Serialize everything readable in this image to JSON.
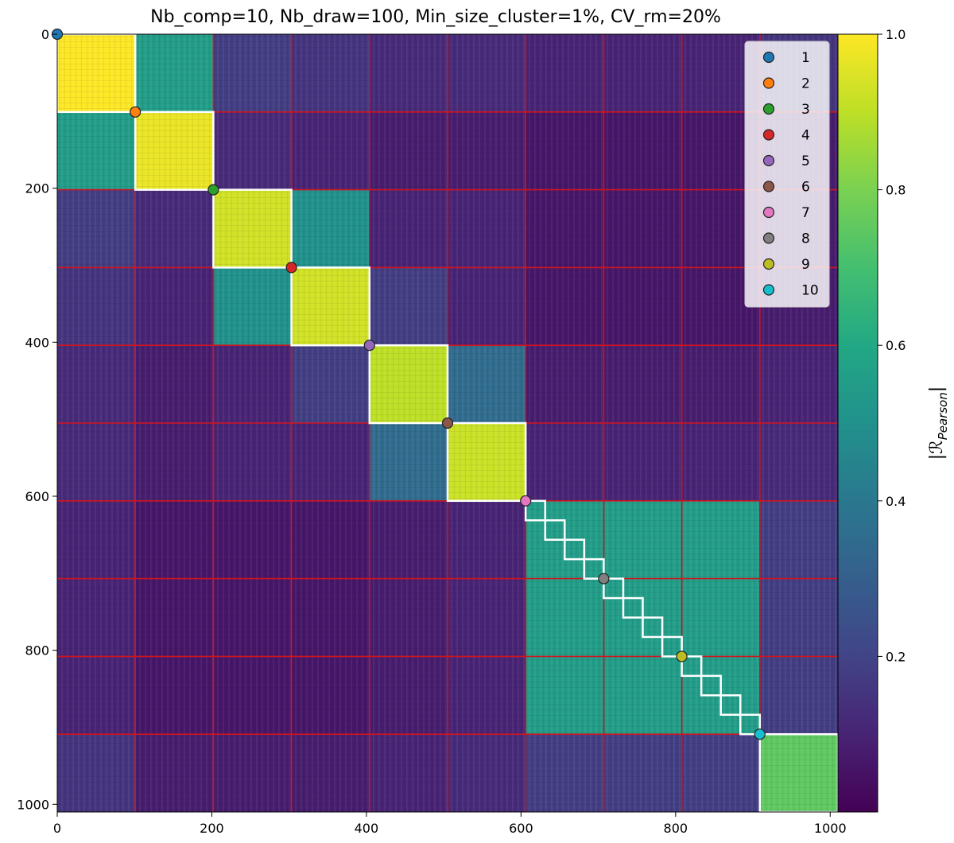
{
  "chart_data": {
    "type": "heatmap",
    "title": "Nb_comp=10, Nb_draw=100, Min_size_cluster=1%, CV_rm=20%",
    "colorbar_label": "|R_Pearson|",
    "xlim": [
      0,
      1010
    ],
    "ylim": [
      1010,
      0
    ],
    "x_ticks": [
      0,
      200,
      400,
      600,
      800,
      1000
    ],
    "y_ticks": [
      0,
      200,
      400,
      600,
      800,
      1000
    ],
    "colorbar_ticks": [
      0.2,
      0.4,
      0.6,
      0.8,
      1.0
    ],
    "colorbar_range": [
      0.0,
      1.0
    ],
    "colormap": "viridis",
    "grid": "red lines at component boundaries",
    "component_boundaries": [
      0,
      101,
      202,
      303,
      404,
      505,
      606,
      707,
      808,
      909,
      1010
    ],
    "block_mean_correlation": [
      [
        1.0,
        0.55,
        0.18,
        0.15,
        0.12,
        0.12,
        0.1,
        0.1,
        0.1,
        0.15
      ],
      [
        0.55,
        0.97,
        0.12,
        0.1,
        0.08,
        0.08,
        0.06,
        0.06,
        0.06,
        0.08
      ],
      [
        0.18,
        0.12,
        0.93,
        0.5,
        0.1,
        0.1,
        0.06,
        0.06,
        0.06,
        0.08
      ],
      [
        0.15,
        0.1,
        0.5,
        0.93,
        0.18,
        0.1,
        0.06,
        0.06,
        0.06,
        0.08
      ],
      [
        0.12,
        0.08,
        0.1,
        0.18,
        0.9,
        0.35,
        0.08,
        0.08,
        0.08,
        0.1
      ],
      [
        0.12,
        0.08,
        0.1,
        0.1,
        0.35,
        0.92,
        0.1,
        0.1,
        0.1,
        0.12
      ],
      [
        0.1,
        0.06,
        0.06,
        0.06,
        0.08,
        0.1,
        0.55,
        0.55,
        0.55,
        0.18
      ],
      [
        0.1,
        0.06,
        0.06,
        0.06,
        0.08,
        0.1,
        0.55,
        0.55,
        0.55,
        0.18
      ],
      [
        0.1,
        0.06,
        0.06,
        0.06,
        0.08,
        0.1,
        0.55,
        0.55,
        0.55,
        0.18
      ],
      [
        0.15,
        0.08,
        0.08,
        0.08,
        0.1,
        0.12,
        0.18,
        0.18,
        0.18,
        0.75
      ]
    ],
    "cluster_blocks": [
      {
        "start": 0,
        "end": 101
      },
      {
        "start": 101,
        "end": 202
      },
      {
        "start": 202,
        "end": 303
      },
      {
        "start": 303,
        "end": 404
      },
      {
        "start": 404,
        "end": 505
      },
      {
        "start": 505,
        "end": 606
      },
      {
        "start": 606,
        "end": 909,
        "note": "staircase of small clusters"
      },
      {
        "start": 909,
        "end": 1010
      }
    ],
    "series": [
      {
        "name": "1",
        "x": 0,
        "y": 0,
        "color": "#1f77b4"
      },
      {
        "name": "2",
        "x": 101,
        "y": 101,
        "color": "#ff7f0e"
      },
      {
        "name": "3",
        "x": 202,
        "y": 202,
        "color": "#2ca02c"
      },
      {
        "name": "4",
        "x": 303,
        "y": 303,
        "color": "#d62728"
      },
      {
        "name": "5",
        "x": 404,
        "y": 404,
        "color": "#9467bd"
      },
      {
        "name": "6",
        "x": 505,
        "y": 505,
        "color": "#8c564b"
      },
      {
        "name": "7",
        "x": 606,
        "y": 606,
        "color": "#e377c2"
      },
      {
        "name": "8",
        "x": 707,
        "y": 707,
        "color": "#7f7f7f"
      },
      {
        "name": "9",
        "x": 808,
        "y": 808,
        "color": "#bcbd22"
      },
      {
        "name": "10",
        "x": 909,
        "y": 909,
        "color": "#17becf"
      }
    ],
    "legend_position": "top-right"
  }
}
